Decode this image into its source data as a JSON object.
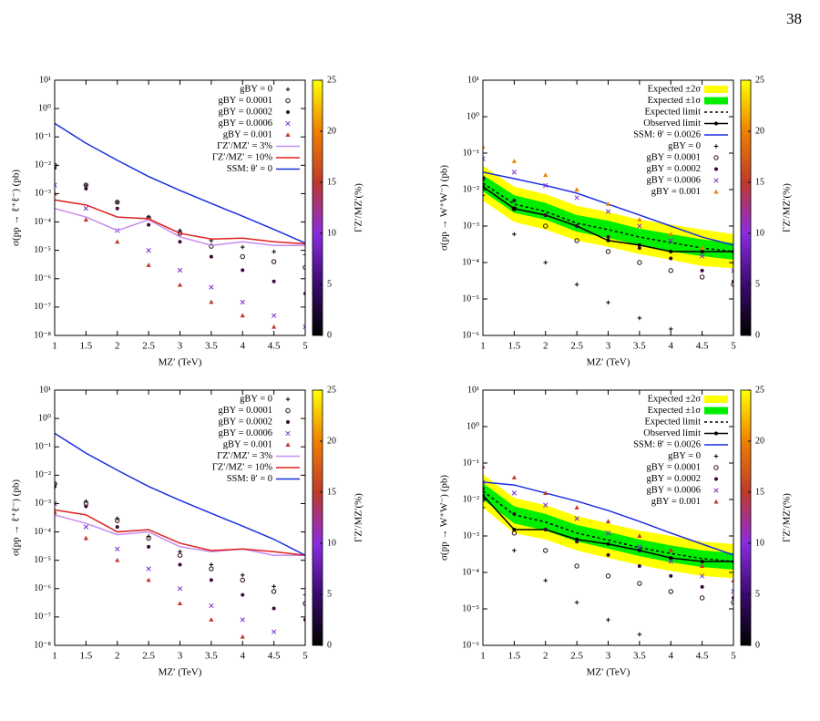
{
  "page_number": "38",
  "chart_data": [
    {
      "type": "scatter",
      "x": [
        1,
        1.5,
        2,
        2.5,
        3,
        3.5,
        4,
        4.5,
        5
      ],
      "xlabel": "MZ′ (TeV)",
      "ylabel": "σ(pp → ℓ⁺ℓ⁻) (pb)",
      "log_y": true,
      "xlim": [
        1,
        5
      ],
      "xticks": [
        1,
        1.5,
        2,
        2.5,
        3,
        3.5,
        4,
        4.5,
        5
      ],
      "ylim": [
        1e-08,
        10
      ],
      "yticks": [
        {
          "value": 1e-08,
          "label": "10⁻⁸"
        },
        {
          "value": 1e-07,
          "label": "10⁻⁷"
        },
        {
          "value": 1e-06,
          "label": "10⁻⁶"
        },
        {
          "value": 1e-05,
          "label": "10⁻⁵"
        },
        {
          "value": 0.0001,
          "label": "10⁻⁴"
        },
        {
          "value": 0.001,
          "label": "10⁻³"
        },
        {
          "value": 0.01,
          "label": "10⁻²"
        },
        {
          "value": 0.1,
          "label": "10⁻¹"
        },
        {
          "value": 1,
          "label": "10⁰"
        },
        {
          "value": 10,
          "label": "10¹"
        }
      ],
      "clabel": "ΓZ′/MZ′(%)",
      "clim": [
        0,
        25
      ],
      "cticks": [
        0,
        5,
        10,
        15,
        20,
        25
      ],
      "colormap": [
        "#000000",
        "#3b0a6e",
        "#8a2be2",
        "#c0392b",
        "#f08000",
        "#ffff00"
      ],
      "legend": "upper right",
      "series": [
        {
          "name": "gBY = 0",
          "mode": "markers",
          "marker": "plus",
          "color": "#000000",
          "values": [
            0.01,
            0.002,
            0.0005,
            0.00015,
            5e-05,
            2.2e-05,
            1.3e-05,
            9e-06,
            7e-06
          ]
        },
        {
          "name": "gBY = 0.0001",
          "mode": "markers",
          "marker": "circle",
          "color": "#2a0a10",
          "values": [
            0.01,
            0.002,
            0.0005,
            0.00014,
            4e-05,
            1.4e-05,
            6e-06,
            4e-06,
            2.5e-06
          ]
        },
        {
          "name": "gBY = 0.0002",
          "mode": "markers",
          "marker": "dot",
          "color": "#3a0a3a",
          "values": [
            0.008,
            0.0015,
            0.0003,
            8e-05,
            2e-05,
            6e-06,
            2e-06,
            8e-07,
            3e-07
          ]
        },
        {
          "name": "gBY = 0.0006",
          "mode": "markers",
          "marker": "cross",
          "color": "#7b2fd0",
          "values": [
            0.002,
            0.0003,
            5e-05,
            1e-05,
            2e-06,
            5e-07,
            1.5e-07,
            5e-08,
            2e-08
          ]
        },
        {
          "name": "gBY = 0.001",
          "mode": "markers",
          "marker": "triangle",
          "color": "#c0392b",
          "values": [
            0.001,
            0.00012,
            2e-05,
            3e-06,
            6e-07,
            1.5e-07,
            5e-08,
            2e-08,
            null
          ]
        },
        {
          "name": "ΓZ′/MZ′ = 3%",
          "mode": "line",
          "color": "#c58cf0",
          "values": [
            0.0003,
            0.00015,
            5e-05,
            0.00012,
            3e-05,
            1.5e-05,
            2e-05,
            1.5e-05,
            1.5e-05
          ]
        },
        {
          "name": "ΓZ′/MZ′ = 10%",
          "mode": "line",
          "color": "#e02020",
          "values": [
            0.0006,
            0.0004,
            0.00015,
            0.00013,
            4e-05,
            2.5e-05,
            2.7e-05,
            2e-05,
            1.7e-05
          ]
        },
        {
          "name": "SSM: θ′ = 0",
          "mode": "line",
          "color": "#1a2ee0",
          "values": [
            0.3,
            0.06,
            0.015,
            0.004,
            0.0013,
            0.00045,
            0.00016,
            5.5e-05,
            1.8e-05
          ]
        }
      ]
    },
    {
      "type": "scatter",
      "x": [
        1,
        1.5,
        2,
        2.5,
        3,
        3.5,
        4,
        4.5,
        5
      ],
      "xlabel": "MZ′ (TeV)",
      "ylabel": "σ(pp → W⁺W⁻) (pb)",
      "log_y": true,
      "xlim": [
        1,
        5
      ],
      "xticks": [
        1,
        1.5,
        2,
        2.5,
        3,
        3.5,
        4,
        4.5,
        5
      ],
      "ylim": [
        1e-06,
        10
      ],
      "yticks": [
        {
          "value": 1e-06,
          "label": "10⁻⁶"
        },
        {
          "value": 1e-05,
          "label": "10⁻⁵"
        },
        {
          "value": 0.0001,
          "label": "10⁻⁴"
        },
        {
          "value": 0.001,
          "label": "10⁻³"
        },
        {
          "value": 0.01,
          "label": "10⁻²"
        },
        {
          "value": 0.1,
          "label": "10⁻¹"
        },
        {
          "value": 1,
          "label": "10⁰"
        },
        {
          "value": 10,
          "label": "10¹"
        }
      ],
      "clabel": "ΓZ′/MZ′(%)",
      "clim": [
        0,
        25
      ],
      "cticks": [
        0,
        5,
        10,
        15,
        20,
        25
      ],
      "colormap": [
        "#000000",
        "#3b0a6e",
        "#8a2be2",
        "#c0392b",
        "#f08000",
        "#ffff00"
      ],
      "legend": "upper right",
      "bands": [
        {
          "name": "Expected ±2σ",
          "color": "#ffff00",
          "lower": [
            0.005,
            0.0013,
            0.0008,
            0.0004,
            0.00027,
            0.00017,
            0.00012,
            8e-05,
            7e-05
          ],
          "upper": [
            0.045,
            0.012,
            0.0075,
            0.0036,
            0.0024,
            0.0015,
            0.0011,
            0.0008,
            0.0006
          ]
        },
        {
          "name": "Expected ±1σ",
          "color": "#00ee00",
          "lower": [
            0.009,
            0.0023,
            0.0015,
            0.0007,
            0.00047,
            0.0003,
            0.0002,
            0.00015,
            0.00012
          ],
          "upper": [
            0.025,
            0.007,
            0.0043,
            0.002,
            0.0014,
            0.00085,
            0.0006,
            0.00043,
            0.00034
          ]
        }
      ],
      "series": [
        {
          "name": "Expected limit",
          "mode": "line",
          "dash": true,
          "color": "#000000",
          "values": [
            0.015,
            0.004,
            0.0025,
            0.0012,
            0.0008,
            0.0005,
            0.00035,
            0.00025,
            0.0002
          ]
        },
        {
          "name": "Observed limit",
          "mode": "line",
          "marker": "dot",
          "color": "#000000",
          "values": [
            0.012,
            0.003,
            0.002,
            0.001,
            0.0004,
            0.0003,
            0.0002,
            0.0002,
            0.0002
          ]
        },
        {
          "name": "SSM: θ′ = 0.0026",
          "mode": "line",
          "color": "#1a2ee0",
          "values": [
            0.03,
            0.02,
            0.013,
            0.008,
            0.004,
            0.002,
            0.001,
            0.0005,
            0.0003
          ]
        },
        {
          "name": "gBY = 0",
          "mode": "markers",
          "marker": "plus",
          "color": "#000000",
          "values": [
            0.007,
            0.0006,
            0.0001,
            2.5e-05,
            8e-06,
            3e-06,
            1.5e-06,
            1e-06,
            null
          ]
        },
        {
          "name": "gBY = 0.0001",
          "mode": "markers",
          "marker": "circle",
          "color": "#2a0a10",
          "values": [
            0.02,
            0.003,
            0.001,
            0.0004,
            0.0002,
            0.0001,
            6e-05,
            4e-05,
            2.5e-05
          ]
        },
        {
          "name": "gBY = 0.0002",
          "mode": "markers",
          "marker": "dot",
          "color": "#3a0a3a",
          "values": [
            0.02,
            0.005,
            0.002,
            0.001,
            0.0005,
            0.00025,
            0.00013,
            6e-05,
            3e-05
          ]
        },
        {
          "name": "gBY = 0.0006",
          "mode": "markers",
          "marker": "cross",
          "color": "#7b2fd0",
          "values": [
            0.07,
            0.03,
            0.013,
            0.006,
            0.0025,
            0.001,
            0.0004,
            0.00015,
            6e-05
          ]
        },
        {
          "name": "gBY = 0.001",
          "mode": "markers",
          "marker": "triangle",
          "color": "#f08000",
          "values": [
            0.15,
            0.06,
            0.025,
            0.01,
            0.004,
            0.0015,
            0.0006,
            0.00025,
            0.0001
          ]
        }
      ]
    },
    {
      "type": "scatter",
      "x": [
        1,
        1.5,
        2,
        2.5,
        3,
        3.5,
        4,
        4.5,
        5
      ],
      "xlabel": "MZ′ (TeV)",
      "ylabel": "σ(pp → ℓ⁺ℓ⁻) (pb)",
      "log_y": true,
      "xlim": [
        1,
        5
      ],
      "xticks": [
        1,
        1.5,
        2,
        2.5,
        3,
        3.5,
        4,
        4.5,
        5
      ],
      "ylim": [
        1e-08,
        10
      ],
      "yticks": [
        {
          "value": 1e-08,
          "label": "10⁻⁸"
        },
        {
          "value": 1e-07,
          "label": "10⁻⁷"
        },
        {
          "value": 1e-06,
          "label": "10⁻⁶"
        },
        {
          "value": 1e-05,
          "label": "10⁻⁵"
        },
        {
          "value": 0.0001,
          "label": "10⁻⁴"
        },
        {
          "value": 0.001,
          "label": "10⁻³"
        },
        {
          "value": 0.01,
          "label": "10⁻²"
        },
        {
          "value": 0.1,
          "label": "10⁻¹"
        },
        {
          "value": 1,
          "label": "10⁰"
        },
        {
          "value": 10,
          "label": "10¹"
        }
      ],
      "clabel": "ΓZ′/MZ′(%)",
      "clim": [
        0,
        25
      ],
      "cticks": [
        0,
        5,
        10,
        15,
        20,
        25
      ],
      "colormap": [
        "#000000",
        "#3b0a6e",
        "#8a2be2",
        "#c0392b",
        "#f08000",
        "#ffff00"
      ],
      "legend": "upper right",
      "series": [
        {
          "name": "gBY = 0",
          "mode": "markers",
          "marker": "plus",
          "color": "#000000",
          "values": [
            0.005,
            0.0012,
            0.0003,
            7e-05,
            2e-05,
            7e-06,
            3e-06,
            1.2e-06,
            6e-07
          ]
        },
        {
          "name": "gBY = 0.0001",
          "mode": "markers",
          "marker": "circle",
          "color": "#2a0a10",
          "values": [
            0.005,
            0.001,
            0.00025,
            6e-05,
            1.5e-05,
            5e-06,
            2e-06,
            8e-07,
            3e-07
          ]
        },
        {
          "name": "gBY = 0.0002",
          "mode": "markers",
          "marker": "dot",
          "color": "#3a0a3a",
          "values": [
            0.004,
            0.0008,
            0.00015,
            3e-05,
            7e-06,
            2e-06,
            6e-07,
            2e-07,
            8e-08
          ]
        },
        {
          "name": "gBY = 0.0006",
          "mode": "markers",
          "marker": "cross",
          "color": "#7b2fd0",
          "values": [
            0.001,
            0.00015,
            2.5e-05,
            5e-06,
            1e-06,
            2.5e-07,
            8e-08,
            3e-08,
            null
          ]
        },
        {
          "name": "gBY = 0.001",
          "mode": "markers",
          "marker": "triangle",
          "color": "#c0392b",
          "values": [
            0.0005,
            6e-05,
            1e-05,
            2e-06,
            3e-07,
            8e-08,
            2e-08,
            null,
            null
          ]
        },
        {
          "name": "ΓZ′/MZ′ = 3%",
          "mode": "line",
          "color": "#c58cf0",
          "values": [
            0.0004,
            0.0002,
            8e-05,
            0.0001,
            3e-05,
            2e-05,
            2.5e-05,
            1.5e-05,
            1.5e-05
          ]
        },
        {
          "name": "ΓZ′/MZ′ = 10%",
          "mode": "line",
          "color": "#e02020",
          "values": [
            0.0006,
            0.0004,
            0.0001,
            0.00012,
            4e-05,
            2.2e-05,
            2.5e-05,
            2e-05,
            1.5e-05
          ]
        },
        {
          "name": "SSM: θ′ = 0",
          "mode": "line",
          "color": "#1a2ee0",
          "values": [
            0.3,
            0.06,
            0.015,
            0.004,
            0.0013,
            0.00045,
            0.00016,
            5.5e-05,
            1.5e-05
          ]
        }
      ]
    },
    {
      "type": "scatter",
      "x": [
        1,
        1.5,
        2,
        2.5,
        3,
        3.5,
        4,
        4.5,
        5
      ],
      "xlabel": "MZ′ (TeV)",
      "ylabel": "σ(pp → W⁺W⁻) (pb)",
      "log_y": true,
      "xlim": [
        1,
        5
      ],
      "xticks": [
        1,
        1.5,
        2,
        2.5,
        3,
        3.5,
        4,
        4.5,
        5
      ],
      "ylim": [
        1e-06,
        10
      ],
      "yticks": [
        {
          "value": 1e-06,
          "label": "10⁻⁶"
        },
        {
          "value": 1e-05,
          "label": "10⁻⁵"
        },
        {
          "value": 0.0001,
          "label": "10⁻⁴"
        },
        {
          "value": 0.001,
          "label": "10⁻³"
        },
        {
          "value": 0.01,
          "label": "10⁻²"
        },
        {
          "value": 0.1,
          "label": "10⁻¹"
        },
        {
          "value": 1,
          "label": "10⁰"
        },
        {
          "value": 10,
          "label": "10¹"
        }
      ],
      "clabel": "ΓZ′/MZ′(%)",
      "clim": [
        0,
        25
      ],
      "cticks": [
        0,
        5,
        10,
        15,
        20,
        25
      ],
      "colormap": [
        "#000000",
        "#3b0a6e",
        "#8a2be2",
        "#c0392b",
        "#f08000",
        "#ffff00"
      ],
      "legend": "upper right",
      "bands": [
        {
          "name": "Expected ±2σ",
          "color": "#ffff00",
          "lower": [
            0.006,
            0.0012,
            0.0008,
            0.0004,
            0.00025,
            0.00016,
            0.00011,
            8e-05,
            7e-05
          ],
          "upper": [
            0.05,
            0.011,
            0.007,
            0.0035,
            0.0022,
            0.0014,
            0.001,
            0.0007,
            0.0006
          ]
        },
        {
          "name": "Expected ±1σ",
          "color": "#00ee00",
          "lower": [
            0.01,
            0.0022,
            0.0014,
            0.0007,
            0.00045,
            0.00028,
            0.00019,
            0.00014,
            0.00012
          ],
          "upper": [
            0.028,
            0.0065,
            0.004,
            0.002,
            0.0013,
            0.0008,
            0.00055,
            0.0004,
            0.00034
          ]
        }
      ],
      "series": [
        {
          "name": "Expected limit",
          "mode": "line",
          "dash": true,
          "color": "#000000",
          "values": [
            0.017,
            0.0038,
            0.0024,
            0.0012,
            0.00077,
            0.00048,
            0.00033,
            0.00024,
            0.0002
          ]
        },
        {
          "name": "Observed limit",
          "mode": "line",
          "marker": "dot",
          "color": "#000000",
          "values": [
            0.013,
            0.0015,
            0.0015,
            0.0008,
            0.0006,
            0.0004,
            0.00025,
            0.0002,
            0.0002
          ]
        },
        {
          "name": "SSM: θ′ = 0.0026",
          "mode": "line",
          "color": "#1a2ee0",
          "values": [
            0.03,
            0.025,
            0.015,
            0.009,
            0.005,
            0.0025,
            0.0012,
            0.0006,
            0.0003
          ]
        },
        {
          "name": "gBY = 0",
          "mode": "markers",
          "marker": "plus",
          "color": "#000000",
          "values": [
            0.006,
            0.0004,
            6e-05,
            1.5e-05,
            5e-06,
            2e-06,
            1e-06,
            null,
            null
          ]
        },
        {
          "name": "gBY = 0.0001",
          "mode": "markers",
          "marker": "circle",
          "color": "#2a0a10",
          "values": [
            0.01,
            0.0012,
            0.0004,
            0.00015,
            8e-05,
            5e-05,
            3e-05,
            2e-05,
            1.5e-05
          ]
        },
        {
          "name": "gBY = 0.0002",
          "mode": "markers",
          "marker": "dot",
          "color": "#3a0a3a",
          "values": [
            0.02,
            0.004,
            0.0015,
            0.0007,
            0.0003,
            0.00015,
            8e-05,
            4e-05,
            2e-05
          ]
        },
        {
          "name": "gBY = 0.0006",
          "mode": "markers",
          "marker": "cross",
          "color": "#7b2fd0",
          "values": [
            0.03,
            0.015,
            0.007,
            0.003,
            0.0012,
            0.0005,
            0.0002,
            8e-05,
            3e-05
          ]
        },
        {
          "name": "gBY = 0.001",
          "mode": "markers",
          "marker": "triangle",
          "color": "#c0392b",
          "values": [
            0.08,
            0.04,
            0.015,
            0.006,
            0.0025,
            0.001,
            0.0004,
            0.00015,
            6e-05
          ]
        }
      ]
    }
  ]
}
